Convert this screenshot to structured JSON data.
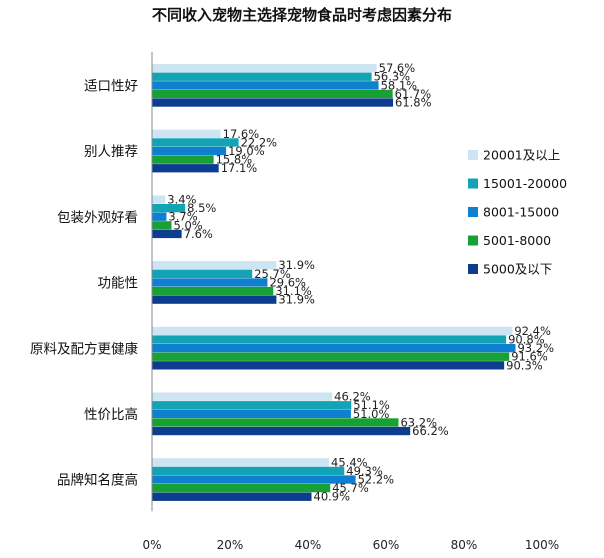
{
  "chart_data": {
    "type": "bar",
    "orientation": "horizontal",
    "title": "不同收入宠物主选择宠物食品时考虑因素分布",
    "xlabel": "",
    "ylabel": "",
    "xlim": [
      0,
      100
    ],
    "x_ticks": [
      "0%",
      "20%",
      "40%",
      "60%",
      "80%",
      "100%"
    ],
    "grid": false,
    "legend_position": "right",
    "value_suffix": "%",
    "categories": [
      "适口性好",
      "别人推荐",
      "包装外观好看",
      "功能性",
      "原料及配方更健康",
      "性价比高",
      "品牌知名度高"
    ],
    "series": [
      {
        "name": "20001及以上",
        "color": "#cde4f2",
        "values": [
          57.6,
          17.6,
          3.4,
          31.9,
          92.4,
          46.2,
          45.4
        ]
      },
      {
        "name": "15001-20000",
        "color": "#12a3b5",
        "values": [
          56.3,
          22.2,
          8.5,
          25.7,
          90.8,
          51.1,
          49.3
        ]
      },
      {
        "name": "8001-15000",
        "color": "#0f7fd0",
        "values": [
          58.1,
          19.0,
          3.7,
          29.6,
          93.2,
          51.0,
          52.2
        ]
      },
      {
        "name": "5001-8000",
        "color": "#17a034",
        "values": [
          61.7,
          15.8,
          5.0,
          31.1,
          91.6,
          63.2,
          45.7
        ]
      },
      {
        "name": "5000及以下",
        "color": "#0d3d8f",
        "values": [
          61.8,
          17.1,
          7.6,
          31.9,
          90.3,
          66.2,
          40.9
        ]
      }
    ]
  }
}
